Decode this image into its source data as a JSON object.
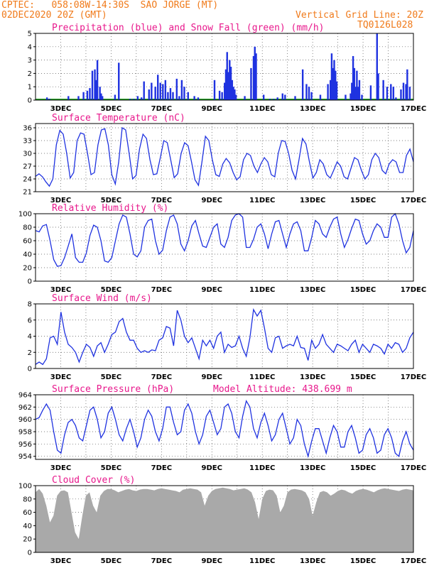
{
  "header": {
    "left_line1": "CPTEC:   058:08W-14:30S  SAO JORGE (MT)",
    "left_line2": "02DEC2020 20Z (GMT)",
    "right_line1": "Vertical Grid Line: 20Z",
    "right_line2": "TQ0126L028"
  },
  "colors": {
    "header": "#f07a1a",
    "title": "#e8188c",
    "series": "#1f32e0",
    "snow": "#2aa02a",
    "cloud": "#a9a9a9"
  },
  "x_ticks": [
    "3DEC",
    "5DEC",
    "7DEC",
    "9DEC",
    "11DEC",
    "13DEC",
    "15DEC",
    "17DEC"
  ],
  "x_range_days": [
    2.0,
    17.0
  ],
  "chart_data": [
    {
      "id": "precip",
      "type": "bar",
      "title": "Precipitation (blue) and Snow Fall (green) (mm/h)",
      "ylim": [
        0,
        5
      ],
      "yticks": [
        0,
        1,
        2,
        3,
        4,
        5
      ],
      "x": [
        2.45,
        2.55,
        3.3,
        3.7,
        3.9,
        4.05,
        4.15,
        4.25,
        4.35,
        4.4,
        4.45,
        4.55,
        4.6,
        4.65,
        5.15,
        5.3,
        5.75,
        5.9,
        6.05,
        6.2,
        6.3,
        6.5,
        6.6,
        6.75,
        6.85,
        6.95,
        7.05,
        7.15,
        7.25,
        7.35,
        7.45,
        7.6,
        7.7,
        7.8,
        7.9,
        8.05,
        8.3,
        8.45,
        9.1,
        9.3,
        9.4,
        9.5,
        9.55,
        9.6,
        9.65,
        9.7,
        9.75,
        9.8,
        9.85,
        9.9,
        9.95,
        10.3,
        10.55,
        10.65,
        10.7,
        10.75,
        11.05,
        11.3,
        11.45,
        11.6,
        11.8,
        11.9,
        12.3,
        12.6,
        12.75,
        12.85,
        12.95,
        13.3,
        13.6,
        13.7,
        13.75,
        13.8,
        13.85,
        13.9,
        13.95,
        14.3,
        14.5,
        14.55,
        14.6,
        14.65,
        14.7,
        14.75,
        14.8,
        14.85,
        14.95,
        15.3,
        15.55,
        15.6,
        15.8,
        15.95,
        16.1,
        16.2,
        16.3,
        16.5,
        16.6,
        16.7,
        16.75,
        16.85
      ],
      "values": [
        0.2,
        0.1,
        0.3,
        0.3,
        0.6,
        0.7,
        0.9,
        2.2,
        2.3,
        1.5,
        3.0,
        1.0,
        0.5,
        0.3,
        0.4,
        2.8,
        0.1,
        0.1,
        0.3,
        0.2,
        1.4,
        0.8,
        1.3,
        1.0,
        1.9,
        1.3,
        1.2,
        1.5,
        0.6,
        0.9,
        0.6,
        1.6,
        0.3,
        1.5,
        1.0,
        0.6,
        0.3,
        0.2,
        1.5,
        0.7,
        0.6,
        1.3,
        2.3,
        3.6,
        2.1,
        3.0,
        2.5,
        1.5,
        1.0,
        0.8,
        0.4,
        0.3,
        2.4,
        3.3,
        4.0,
        3.5,
        0.4,
        0.1,
        0.1,
        0.2,
        0.5,
        0.4,
        0.3,
        2.3,
        1.2,
        1.0,
        0.6,
        0.4,
        1.2,
        1.5,
        3.5,
        2.4,
        3.0,
        2.2,
        1.4,
        0.4,
        0.5,
        1.3,
        3.3,
        2.4,
        1.0,
        2.2,
        1.0,
        1.5,
        0.4,
        1.1,
        5.1,
        2.0,
        1.5,
        1.0,
        1.2,
        1.0,
        0.2,
        0.8,
        1.3,
        1.2,
        2.3,
        1.0
      ]
    },
    {
      "id": "temp",
      "type": "line",
      "title": "Surface Temperature (nC)",
      "ylim": [
        21,
        37
      ],
      "yticks": [
        21,
        24,
        27,
        30,
        33,
        36
      ],
      "values": [
        24.6,
        25.2,
        24.5,
        23.3,
        22.3,
        24.0,
        32.0,
        35.4,
        34.5,
        30.0,
        24.2,
        25.5,
        33.0,
        34.8,
        34.5,
        30.0,
        25.0,
        25.5,
        32.0,
        35.5,
        35.8,
        32.0,
        25.0,
        22.8,
        28.0,
        36.0,
        35.5,
        30.0,
        24.0,
        24.8,
        31.0,
        34.5,
        33.5,
        28.5,
        25.0,
        25.2,
        29.0,
        33.0,
        32.5,
        28.5,
        24.3,
        25.2,
        30.0,
        32.5,
        31.8,
        28.0,
        23.8,
        22.5,
        28.0,
        34.0,
        33.0,
        28.5,
        25.0,
        24.6,
        27.5,
        28.8,
        27.8,
        25.5,
        23.8,
        24.5,
        28.5,
        30.0,
        29.5,
        27.0,
        25.5,
        27.5,
        29.0,
        28.0,
        25.0,
        24.5,
        30.0,
        33.0,
        32.8,
        30.0,
        26.0,
        24.0,
        28.5,
        33.5,
        32.2,
        28.0,
        24.2,
        25.5,
        28.5,
        27.5,
        25.0,
        24.2,
        26.0,
        28.0,
        27.0,
        24.5,
        24.0,
        26.5,
        29.0,
        28.5,
        26.0,
        24.0,
        25.0,
        28.5,
        30.0,
        29.0,
        26.0,
        25.2,
        27.5,
        28.5,
        28.0,
        25.5,
        25.5,
        29.5,
        31.0,
        28.0
      ]
    },
    {
      "id": "rh",
      "type": "line",
      "title": "Relative Humidity (%)",
      "ylim": [
        0,
        100
      ],
      "yticks": [
        0,
        20,
        40,
        60,
        80,
        100
      ],
      "values": [
        75,
        73,
        82,
        84,
        60,
        32,
        22,
        23,
        35,
        52,
        70,
        35,
        28,
        28,
        42,
        68,
        83,
        80,
        60,
        30,
        28,
        35,
        60,
        85,
        98,
        95,
        70,
        40,
        36,
        45,
        80,
        90,
        92,
        60,
        40,
        46,
        75,
        95,
        98,
        85,
        55,
        45,
        60,
        82,
        90,
        70,
        52,
        50,
        65,
        80,
        85,
        55,
        50,
        65,
        90,
        98,
        100,
        95,
        50,
        50,
        62,
        80,
        85,
        70,
        48,
        70,
        88,
        90,
        70,
        50,
        70,
        85,
        88,
        75,
        45,
        45,
        65,
        90,
        85,
        70,
        65,
        80,
        92,
        95,
        70,
        50,
        62,
        78,
        92,
        90,
        70,
        55,
        60,
        75,
        85,
        80,
        65,
        65,
        95,
        100,
        85,
        60,
        42,
        50,
        75
      ]
    },
    {
      "id": "wind",
      "type": "line",
      "title": "Surface Wind (m/s)",
      "ylim": [
        0,
        8
      ],
      "yticks": [
        0,
        2,
        4,
        6,
        8
      ],
      "values": [
        0.5,
        0.8,
        0.5,
        1.2,
        3.8,
        4.0,
        3.0,
        7.0,
        4.5,
        3.0,
        2.6,
        2.0,
        0.8,
        2.0,
        3.0,
        2.6,
        1.5,
        2.8,
        3.2,
        2.0,
        3.0,
        4.2,
        4.5,
        5.8,
        6.2,
        4.5,
        3.5,
        3.5,
        2.5,
        2.0,
        2.2,
        2.0,
        2.3,
        2.2,
        3.5,
        3.8,
        5.2,
        5.0,
        2.8,
        7.2,
        6.0,
        4.0,
        3.2,
        3.8,
        2.5,
        1.2,
        3.5,
        2.8,
        3.5,
        2.5,
        4.0,
        4.5,
        2.0,
        3.0,
        2.6,
        2.8,
        4.0,
        2.5,
        1.5,
        3.8,
        7.3,
        6.5,
        7.2,
        5.0,
        2.5,
        2.0,
        3.8,
        4.0,
        2.5,
        2.8,
        3.0,
        2.8,
        4.0,
        2.6,
        2.5,
        1.0,
        3.5,
        2.5,
        3.0,
        4.2,
        3.0,
        2.5,
        2.0,
        3.0,
        2.8,
        2.5,
        2.2,
        3.0,
        3.5,
        2.0,
        3.0,
        2.5,
        2.0,
        3.0,
        2.8,
        2.5,
        1.8,
        3.0,
        2.5,
        3.2,
        3.0,
        2.0,
        2.5,
        3.8,
        4.5
      ]
    },
    {
      "id": "pressure",
      "type": "line",
      "title": "Surface Pressure (hPa)",
      "annotation": "Model Altitude: 438.699 m",
      "ylim": [
        953.5,
        964
      ],
      "yticks": [
        954,
        956,
        958,
        960,
        962,
        964
      ],
      "values": [
        960.0,
        960.3,
        961.5,
        962.5,
        961.5,
        958.0,
        955.0,
        954.5,
        957.5,
        959.5,
        960.0,
        959.0,
        957.0,
        956.5,
        959.0,
        961.5,
        962.0,
        960.0,
        957.0,
        958.0,
        961.0,
        962.0,
        960.0,
        957.5,
        956.5,
        958.5,
        960.0,
        958.0,
        955.5,
        957.0,
        960.0,
        961.5,
        960.5,
        958.0,
        956.5,
        958.5,
        962.0,
        962.0,
        959.5,
        957.5,
        958.0,
        961.5,
        962.5,
        961.0,
        958.0,
        956.0,
        957.5,
        960.5,
        961.5,
        959.5,
        957.5,
        958.5,
        962.0,
        962.5,
        961.0,
        958.0,
        957.0,
        960.5,
        963.0,
        962.0,
        958.5,
        957.0,
        959.5,
        961.0,
        959.0,
        956.5,
        957.5,
        960.0,
        961.0,
        958.5,
        956.0,
        957.0,
        960.0,
        959.0,
        956.0,
        954.0,
        956.5,
        958.5,
        958.5,
        956.5,
        954.5,
        957.0,
        959.0,
        958.0,
        955.5,
        955.5,
        958.0,
        959.0,
        957.0,
        954.5,
        955.0,
        957.5,
        958.5,
        957.0,
        954.5,
        955.0,
        957.5,
        958.5,
        957.0,
        954.5,
        954.0,
        956.5,
        958.0,
        956.0,
        955.0
      ]
    },
    {
      "id": "cloud",
      "type": "area",
      "title": "Cloud Cover (%)",
      "ylim": [
        0,
        100
      ],
      "yticks": [
        0,
        20,
        40,
        60,
        80,
        100
      ],
      "values": [
        90,
        95,
        88,
        70,
        45,
        55,
        85,
        92,
        93,
        90,
        60,
        30,
        20,
        55,
        85,
        90,
        70,
        60,
        85,
        92,
        95,
        95,
        93,
        90,
        92,
        94,
        95,
        93,
        92,
        94,
        95,
        95,
        94,
        93,
        95,
        96,
        95,
        94,
        93,
        92,
        90,
        94,
        95,
        96,
        95,
        94,
        90,
        70,
        85,
        92,
        95,
        96,
        97,
        96,
        95,
        93,
        94,
        95,
        96,
        94,
        90,
        75,
        50,
        80,
        92,
        94,
        93,
        85,
        60,
        70,
        90,
        94,
        95,
        94,
        93,
        90,
        80,
        55,
        75,
        90,
        92,
        90,
        85,
        88,
        92,
        94,
        93,
        90,
        88,
        92,
        94,
        95,
        94,
        92,
        90,
        93,
        95,
        96,
        95,
        94,
        93,
        92,
        94,
        95,
        94,
        93
      ]
    }
  ]
}
